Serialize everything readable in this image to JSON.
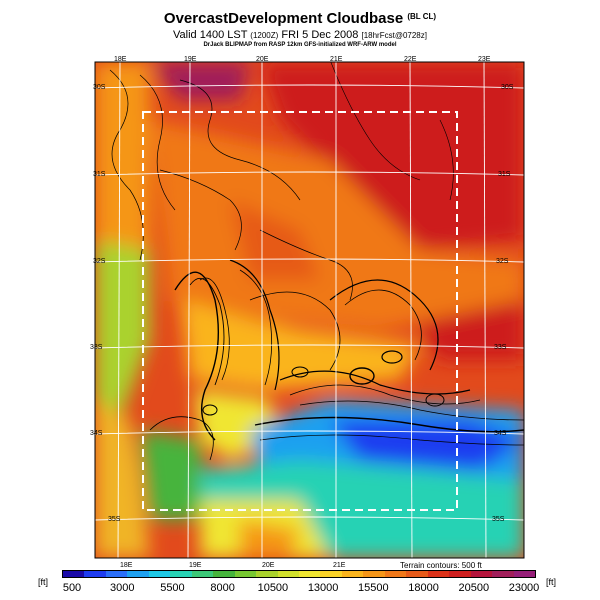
{
  "header": {
    "title": "OvercastDevelopment Cloudbase",
    "title_suffix": "(BL CL)",
    "valid_main": "Valid 1400 LST",
    "valid_utc": "(1200Z)",
    "valid_date": "FRI 5 Dec 2008",
    "valid_fcst": "[18hrFcst@0728z]",
    "credit": "DrJack BLIPMAP from RASP 12km GFS-initialized WRF-ARW model"
  },
  "map": {
    "lon_labels_top": [
      "18E",
      "19E",
      "20E",
      "21E",
      "22E",
      "23E"
    ],
    "lon_labels_bottom": [
      "18E",
      "19E",
      "20E",
      "21E"
    ],
    "lat_labels_left": [
      "30S",
      "31S",
      "32S",
      "33S",
      "34S",
      "35S"
    ],
    "lat_labels_right": [
      "30S",
      "31S",
      "32S",
      "33S",
      "34S",
      "35S"
    ],
    "terrain_note": "Terrain contours: 500 ft"
  },
  "legend": {
    "unit_left": "[ft]",
    "unit_right": "[ft]",
    "ticks": [
      "500",
      "3000",
      "5500",
      "8000",
      "10500",
      "13000",
      "15500",
      "18000",
      "20500",
      "23000"
    ],
    "colors": [
      "#1a0aa8",
      "#1e3cf0",
      "#2a6ef8",
      "#1ea0f0",
      "#1ec8e6",
      "#28d2b4",
      "#3cc878",
      "#46b43c",
      "#78c832",
      "#aad22d",
      "#d2e12d",
      "#f0e632",
      "#fad228",
      "#fab41e",
      "#f59619",
      "#f07819",
      "#e65a19",
      "#dc3219",
      "#cd1e1e",
      "#b4143c",
      "#a01e5a",
      "#961e78"
    ]
  }
}
